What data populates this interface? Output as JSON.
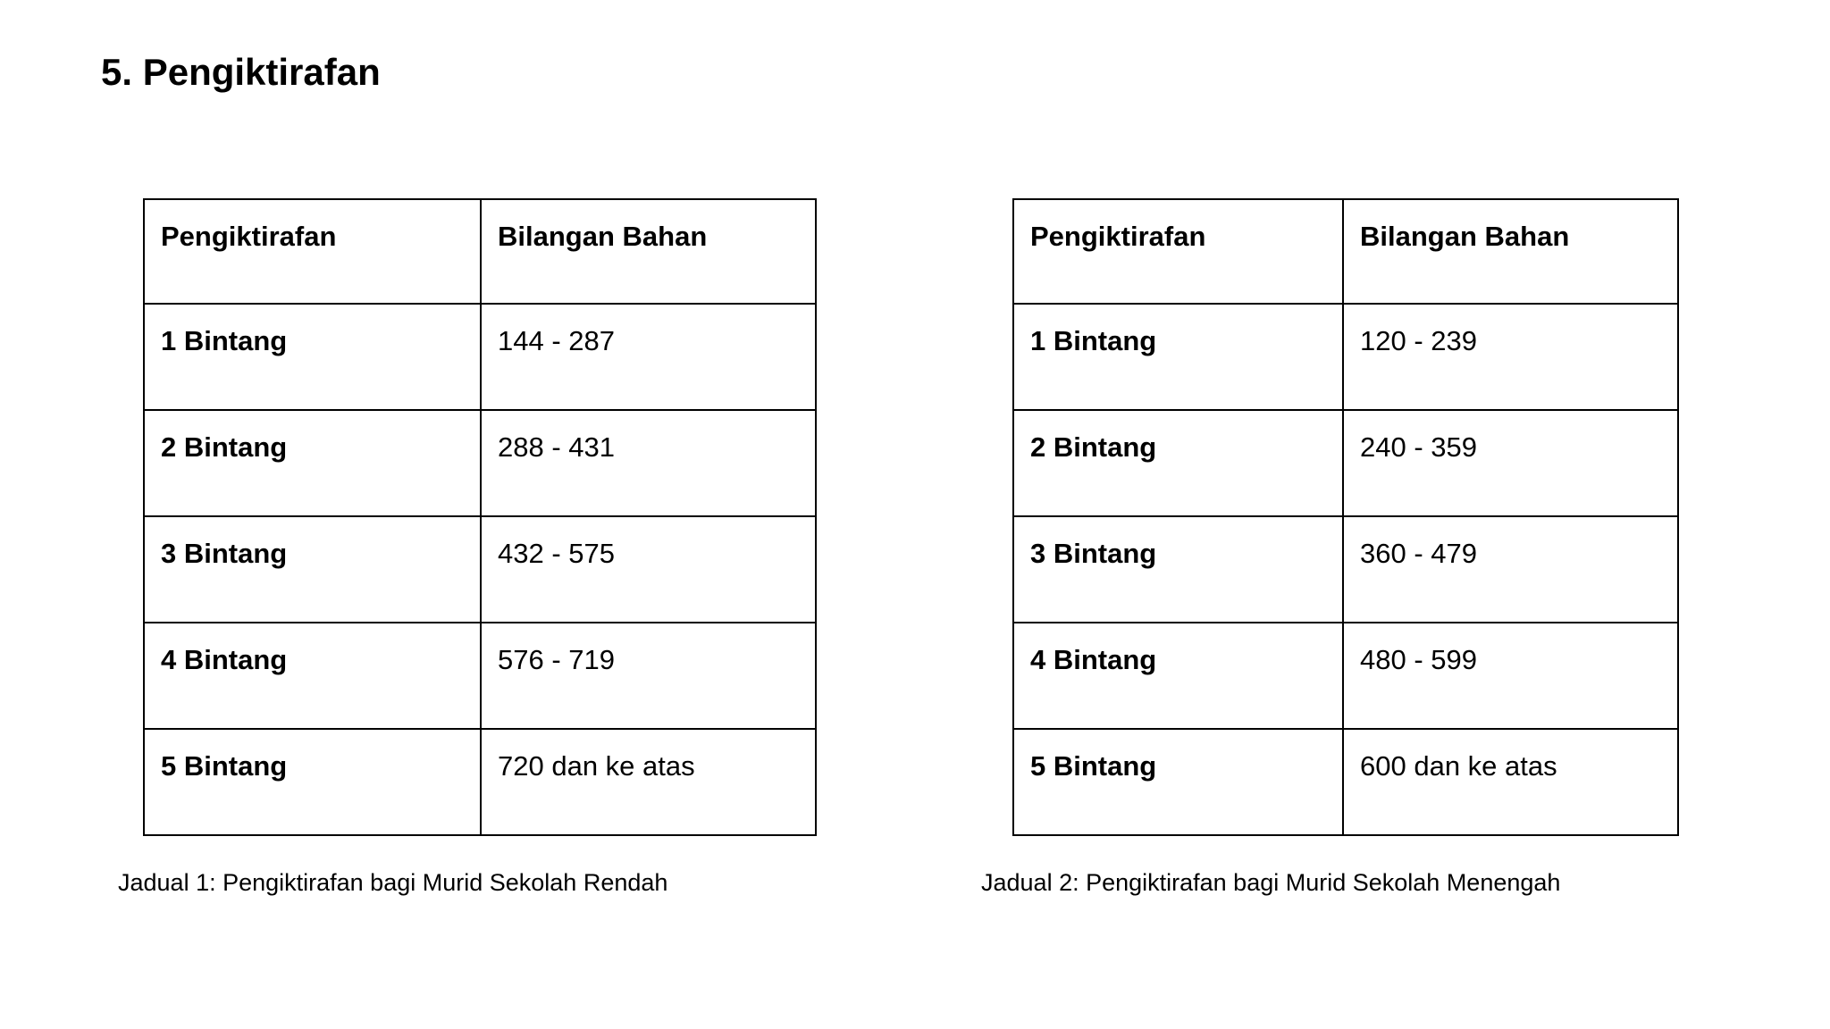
{
  "page": {
    "heading": "5. Pengiktirafan"
  },
  "colors": {
    "background": "#ffffff",
    "text": "#000000",
    "border": "#000000"
  },
  "tables": [
    {
      "caption": "Jadual 1: Pengiktirafan bagi Murid Sekolah Rendah",
      "headers": [
        "Pengiktirafan",
        "Bilangan Bahan"
      ],
      "rows": [
        [
          "1 Bintang",
          "144 - 287"
        ],
        [
          "2 Bintang",
          "288 - 431"
        ],
        [
          "3 Bintang",
          "432 - 575"
        ],
        [
          "4 Bintang",
          "576 - 719"
        ],
        [
          "5 Bintang",
          "720 dan ke atas"
        ]
      ]
    },
    {
      "caption": "Jadual 2: Pengiktirafan bagi Murid Sekolah Menengah",
      "headers": [
        "Pengiktirafan",
        "Bilangan Bahan"
      ],
      "rows": [
        [
          "1 Bintang",
          "120 - 239"
        ],
        [
          "2 Bintang",
          "240 - 359"
        ],
        [
          "3 Bintang",
          "360 - 479"
        ],
        [
          "4 Bintang",
          "480 - 599"
        ],
        [
          "5 Bintang",
          "600 dan ke atas"
        ]
      ]
    }
  ]
}
